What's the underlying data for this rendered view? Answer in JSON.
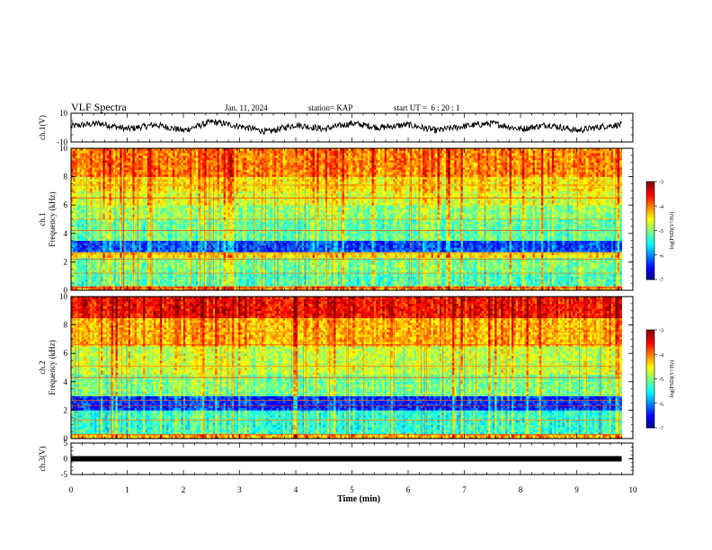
{
  "header": {
    "title": "VLF Spectra",
    "date": "Jan. 11, 2024",
    "station": "station= KAP",
    "start": "start UT =  6 : 20 : 1"
  },
  "colors": {
    "colormap": [
      "#8b0000",
      "#ff0000",
      "#ff8c00",
      "#ffff00",
      "#7fff00",
      "#00ff7f",
      "#00ffff",
      "#0080ff",
      "#0000ff",
      "#00007f"
    ],
    "trace": "#000000",
    "text": "#000000"
  },
  "chart_data": [
    {
      "type": "line",
      "panel": "ch1-waveform",
      "ylabel": "ch.1(V)",
      "ylim": [
        -10,
        10
      ],
      "yticks": [
        "10",
        "-10"
      ],
      "xlim": [
        0,
        10
      ],
      "description_values": "noisy waveform oscillating roughly between -6 and +6 V over 0–9.8 min",
      "x": [
        0,
        0.5,
        1.0,
        1.5,
        2.0,
        2.5,
        3.0,
        3.5,
        4.0,
        4.5,
        5.0,
        5.5,
        6.0,
        6.5,
        7.0,
        7.5,
        8.0,
        8.5,
        9.0,
        9.5,
        9.8
      ],
      "y": [
        1,
        3,
        -1,
        2,
        -2,
        4,
        1,
        -3,
        2,
        -1,
        3,
        0,
        2,
        -2,
        1,
        3,
        -1,
        2,
        -2,
        1,
        2
      ]
    },
    {
      "type": "heatmap",
      "panel": "ch1-spectrogram",
      "ylabel": "ch.1\nFrequency (kHz)",
      "ylim": [
        0,
        10
      ],
      "yticks": [
        "0",
        "2",
        "4",
        "6",
        "8",
        "10"
      ],
      "xlim": [
        0,
        10
      ],
      "data_end_min": 9.8,
      "colorbar": {
        "label": "log(PSD)(V²/Hz)",
        "ticks": [
          "-3",
          "-4",
          "-5",
          "-6",
          "-7"
        ],
        "range": [
          -7,
          -3
        ]
      },
      "bands_kHz": [
        {
          "from": 0.0,
          "to": 0.3,
          "level": -4.0
        },
        {
          "from": 0.3,
          "to": 1.3,
          "level": -5.2
        },
        {
          "from": 1.3,
          "to": 2.3,
          "level": -5.0
        },
        {
          "from": 2.3,
          "to": 2.7,
          "level": -4.4
        },
        {
          "from": 2.7,
          "to": 3.5,
          "level": -6.2
        },
        {
          "from": 3.5,
          "to": 5.0,
          "level": -5.1
        },
        {
          "from": 5.0,
          "to": 6.0,
          "level": -4.9
        },
        {
          "from": 6.0,
          "to": 7.0,
          "level": -4.6
        },
        {
          "from": 7.0,
          "to": 8.0,
          "level": -4.4
        },
        {
          "from": 8.0,
          "to": 10.0,
          "level": -4.0
        }
      ]
    },
    {
      "type": "heatmap",
      "panel": "ch2-spectrogram",
      "ylabel": "ch.2\nFrequency (kHz)",
      "ylim": [
        0,
        10
      ],
      "yticks": [
        "0",
        "2",
        "4",
        "6",
        "8",
        "10"
      ],
      "xlim": [
        0,
        10
      ],
      "data_end_min": 9.8,
      "colorbar": {
        "label": "log(PSD)(V²/Hz)",
        "ticks": [
          "-3",
          "-4",
          "-5",
          "-6",
          "-7"
        ],
        "range": [
          -7,
          -3
        ]
      },
      "bands_kHz": [
        {
          "from": 0.0,
          "to": 0.3,
          "level": -4.2
        },
        {
          "from": 0.3,
          "to": 2.0,
          "level": -5.3
        },
        {
          "from": 2.0,
          "to": 3.0,
          "level": -6.3
        },
        {
          "from": 3.0,
          "to": 4.5,
          "level": -5.0
        },
        {
          "from": 4.5,
          "to": 6.5,
          "level": -4.7
        },
        {
          "from": 6.5,
          "to": 8.5,
          "level": -4.2
        },
        {
          "from": 8.5,
          "to": 10.0,
          "level": -3.5
        }
      ]
    },
    {
      "type": "line",
      "panel": "ch3-waveform",
      "ylabel": "ch.3(V)",
      "ylim": [
        -5,
        5
      ],
      "yticks": [
        "5",
        "0",
        "-5"
      ],
      "xlim": [
        0,
        10
      ],
      "x": [
        0,
        9.8
      ],
      "y": [
        0,
        0
      ]
    }
  ],
  "xaxis": {
    "label": "Time (min)",
    "ticks": [
      "0",
      "1",
      "2",
      "3",
      "4",
      "5",
      "6",
      "7",
      "8",
      "9",
      "10"
    ]
  }
}
